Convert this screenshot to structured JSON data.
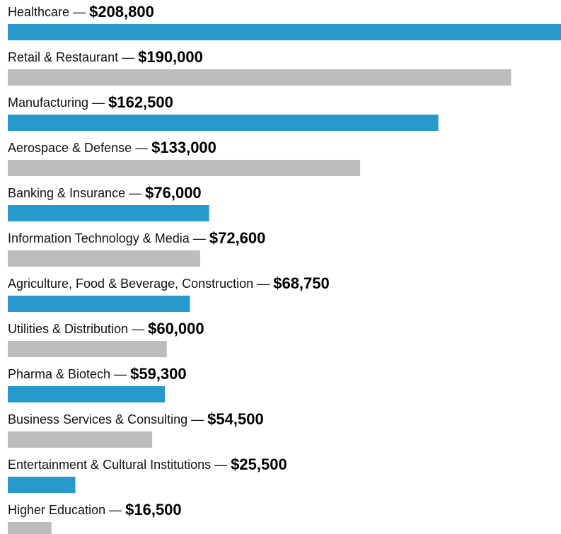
{
  "chart_data": {
    "type": "bar",
    "orientation": "horizontal",
    "categories": [
      "Healthcare",
      "Retail & Restaurant",
      "Manufacturing",
      "Aerospace & Defense",
      "Banking & Insurance",
      "Information Technology & Media",
      "Agriculture, Food & Beverage, Construction",
      "Utilities & Distribution",
      "Pharma & Biotech",
      "Business Services & Consulting",
      "Entertainment & Cultural Institutions",
      "Higher Education"
    ],
    "values": [
      208800,
      190000,
      162500,
      133000,
      76000,
      72600,
      68750,
      60000,
      59300,
      54500,
      25500,
      16500
    ],
    "value_labels": [
      "$208,800",
      "$190,000",
      "$162,500",
      "$133,000",
      "$76,000",
      "$72,600",
      "$68,750",
      "$60,000",
      "$59,300",
      "$54,500",
      "$25,500",
      "$16,500"
    ],
    "separator": "—",
    "colors": [
      "#2899cb",
      "#bcbcbe"
    ]
  }
}
